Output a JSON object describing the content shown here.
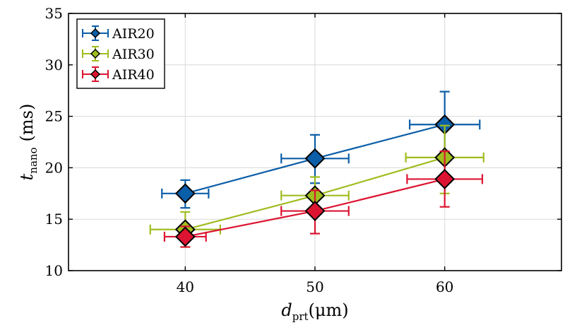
{
  "chart_data": {
    "type": "line",
    "title": "",
    "xlabel": {
      "symbol": "d",
      "sub": "prt",
      "unit": "(μm)"
    },
    "ylabel": {
      "symbol": "t",
      "sub": "nano",
      "unit": "(ms)"
    },
    "xlim": [
      31,
      69
    ],
    "ylim": [
      10,
      35
    ],
    "xticks": [
      40,
      50,
      60
    ],
    "yticks": [
      10,
      15,
      20,
      25,
      30,
      35
    ],
    "grid": true,
    "legend_position": "top-left",
    "series": [
      {
        "name": "AIR20",
        "color": "#0b5ea8",
        "x": [
          40,
          50,
          60
        ],
        "y": [
          17.5,
          20.9,
          24.2
        ],
        "yerr_low": [
          1.4,
          2.4,
          2.6
        ],
        "yerr_high": [
          1.3,
          2.3,
          3.2
        ],
        "xerr": [
          1.8,
          2.6,
          2.7
        ]
      },
      {
        "name": "AIR30",
        "color": "#9fbd1f",
        "x": [
          40,
          50,
          60
        ],
        "y": [
          14.0,
          17.3,
          21.0
        ],
        "yerr_low": [
          1.7,
          1.5,
          3.5
        ],
        "yerr_high": [
          1.7,
          1.8,
          3.1
        ],
        "xerr": [
          2.7,
          2.6,
          3.0
        ]
      },
      {
        "name": "AIR40",
        "color": "#dc1431",
        "x": [
          40,
          50,
          60
        ],
        "y": [
          13.3,
          15.8,
          18.9
        ],
        "yerr_low": [
          1.0,
          2.2,
          2.7
        ],
        "yerr_high": [
          1.0,
          2.0,
          2.7
        ],
        "xerr": [
          1.6,
          2.6,
          2.9
        ]
      }
    ]
  }
}
